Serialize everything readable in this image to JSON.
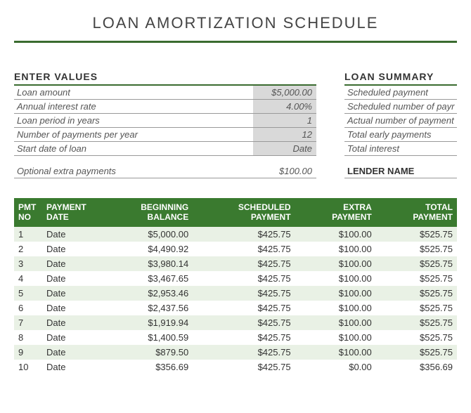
{
  "title": "LOAN AMORTIZATION SCHEDULE",
  "enter_values": {
    "heading": "ENTER VALUES",
    "rows": [
      {
        "label": "Loan amount",
        "value": "$5,000.00"
      },
      {
        "label": "Annual interest rate",
        "value": "4.00%"
      },
      {
        "label": "Loan period in years",
        "value": "1"
      },
      {
        "label": "Number of payments per year",
        "value": "12"
      },
      {
        "label": "Start date of loan",
        "value": "Date"
      }
    ],
    "extra": {
      "label": "Optional extra payments",
      "value": "$100.00"
    }
  },
  "loan_summary": {
    "heading": "LOAN SUMMARY",
    "rows": [
      "Scheduled payment",
      "Scheduled number of payr",
      "Actual number of payment",
      "Total early payments",
      "Total interest"
    ],
    "lender": "LENDER NAME"
  },
  "schedule": {
    "columns": [
      "PMT NO",
      "PAYMENT DATE",
      "BEGINNING BALANCE",
      "SCHEDULED PAYMENT",
      "EXTRA PAYMENT",
      "TOTAL PAYMENT"
    ],
    "rows": [
      [
        "1",
        "Date",
        "$5,000.00",
        "$425.75",
        "$100.00",
        "$525.75"
      ],
      [
        "2",
        "Date",
        "$4,490.92",
        "$425.75",
        "$100.00",
        "$525.75"
      ],
      [
        "3",
        "Date",
        "$3,980.14",
        "$425.75",
        "$100.00",
        "$525.75"
      ],
      [
        "4",
        "Date",
        "$3,467.65",
        "$425.75",
        "$100.00",
        "$525.75"
      ],
      [
        "5",
        "Date",
        "$2,953.46",
        "$425.75",
        "$100.00",
        "$525.75"
      ],
      [
        "6",
        "Date",
        "$2,437.56",
        "$425.75",
        "$100.00",
        "$525.75"
      ],
      [
        "7",
        "Date",
        "$1,919.94",
        "$425.75",
        "$100.00",
        "$525.75"
      ],
      [
        "8",
        "Date",
        "$1,400.59",
        "$425.75",
        "$100.00",
        "$525.75"
      ],
      [
        "9",
        "Date",
        "$879.50",
        "$425.75",
        "$100.00",
        "$525.75"
      ],
      [
        "10",
        "Date",
        "$356.69",
        "$425.75",
        "$0.00",
        "$356.69"
      ]
    ]
  },
  "colors": {
    "header_green": "#3a7a2f",
    "rule_green": "#3a6b2f",
    "row_alt": "#e9f1e5",
    "value_bg": "#d9d9d9"
  }
}
